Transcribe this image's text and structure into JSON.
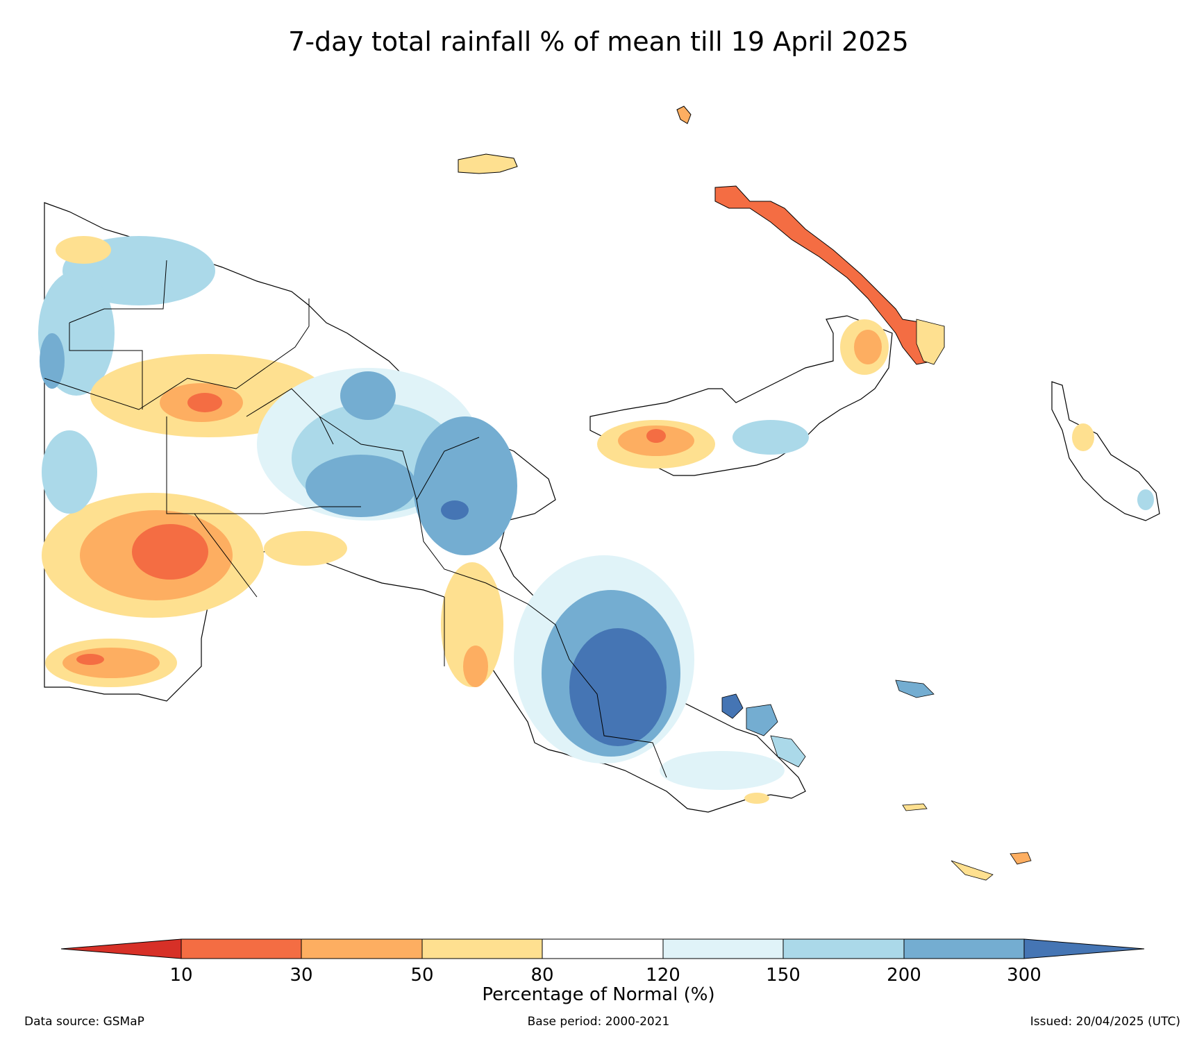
{
  "title": "7-day total rainfall % of mean till 19 April 2025",
  "colorbar": {
    "label": "Percentage of Normal (%)",
    "ticks": [
      "10",
      "30",
      "50",
      "80",
      "120",
      "150",
      "200",
      "300"
    ],
    "colors": [
      "#d73027",
      "#f46d43",
      "#fdae61",
      "#fee090",
      "#ffffff",
      "#e0f3f8",
      "#abd9e9",
      "#74add1",
      "#4575b4"
    ]
  },
  "footer": {
    "source": "Data source: GSMaP",
    "base_period": "Base period: 2000-2021",
    "issued": "Issued: 20/04/2025 (UTC)"
  }
}
